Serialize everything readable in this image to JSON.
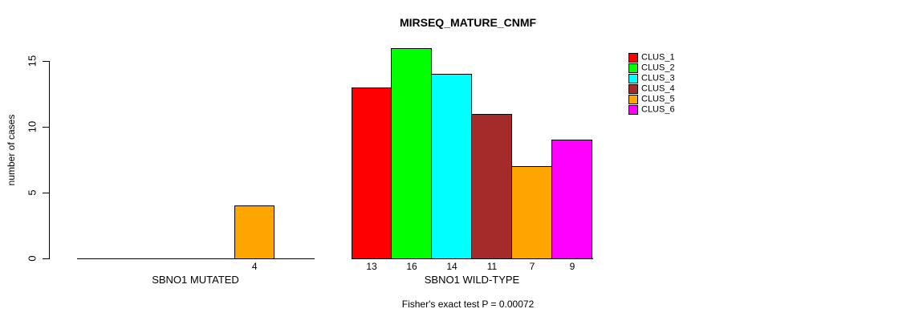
{
  "chart_data": {
    "type": "bar",
    "title": "MIRSEQ_MATURE_CNMF",
    "ylabel": "number of cases",
    "xlabel": "",
    "ylim": [
      0,
      15
    ],
    "yticks": [
      "0",
      "5",
      "10",
      "15"
    ],
    "grid": false,
    "legend_position": "top-right",
    "clusters": [
      {
        "name": "CLUS_1",
        "color": "#FF0000"
      },
      {
        "name": "CLUS_2",
        "color": "#00FF00"
      },
      {
        "name": "CLUS_3",
        "color": "#00FFFF"
      },
      {
        "name": "CLUS_4",
        "color": "#A52A2A"
      },
      {
        "name": "CLUS_5",
        "color": "#FFA500"
      },
      {
        "name": "CLUS_6",
        "color": "#FF00FF"
      }
    ],
    "groups": [
      {
        "label": "SBNO1 MUTATED",
        "values": [
          0,
          0,
          0,
          0,
          4,
          0
        ],
        "value_labels": [
          "",
          "",
          "",
          "",
          "4",
          ""
        ]
      },
      {
        "label": "SBNO1 WILD-TYPE",
        "values": [
          13,
          16,
          14,
          11,
          7,
          9
        ],
        "value_labels": [
          "13",
          "16",
          "14",
          "11",
          "7",
          "9"
        ]
      }
    ],
    "footnote": "Fisher's exact test P = 0.00072",
    "axis_color": "#000000",
    "background_color": "#FFFFFF"
  }
}
